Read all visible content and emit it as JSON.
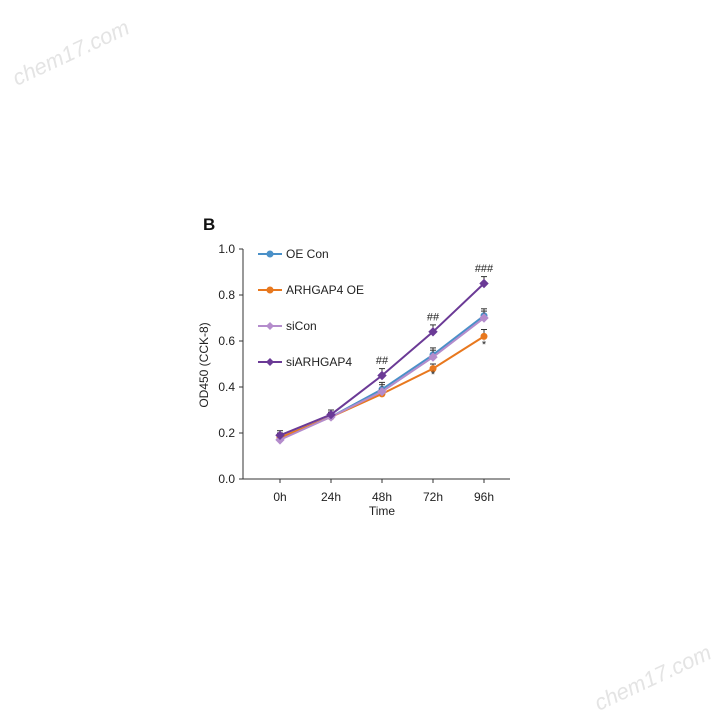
{
  "watermark": "chem17.com",
  "chart_data": {
    "type": "line",
    "panel_label": "B",
    "xlabel": "Time",
    "ylabel": "OD450 (CCK-8)",
    "categories": [
      "0h",
      "24h",
      "48h",
      "72h",
      "96h"
    ],
    "ylim": [
      0,
      1.0
    ],
    "yticks": [
      "0.0",
      "0.2",
      "0.4",
      "0.6",
      "0.8",
      "1.0"
    ],
    "legend_position": "top-left",
    "grid": false,
    "series": [
      {
        "name": "OE Con",
        "color": "#4a90c8",
        "marker": "circle",
        "values": [
          0.18,
          0.27,
          0.39,
          0.54,
          0.71
        ],
        "errors": [
          0.02,
          0.02,
          0.03,
          0.03,
          0.03
        ]
      },
      {
        "name": "ARHGAP4 OE",
        "color": "#e8781e",
        "marker": "circle",
        "values": [
          0.18,
          0.27,
          0.37,
          0.48,
          0.62
        ],
        "errors": [
          0.02,
          0.02,
          0.02,
          0.02,
          0.03
        ]
      },
      {
        "name": "siCon",
        "color": "#b48ccc",
        "marker": "diamond",
        "values": [
          0.17,
          0.27,
          0.38,
          0.53,
          0.7
        ],
        "errors": [
          0.02,
          0.02,
          0.03,
          0.03,
          0.03
        ]
      },
      {
        "name": "siARHGAP4",
        "color": "#6b3a96",
        "marker": "diamond",
        "values": [
          0.19,
          0.28,
          0.45,
          0.64,
          0.85
        ],
        "errors": [
          0.02,
          0.02,
          0.03,
          0.03,
          0.03
        ]
      }
    ],
    "annotations": [
      {
        "text": "##",
        "x": "48h",
        "y": 0.5
      },
      {
        "text": "##",
        "x": "72h",
        "y": 0.69
      },
      {
        "text": "###",
        "x": "96h",
        "y": 0.9
      },
      {
        "text": "*",
        "x": "72h",
        "y": 0.44
      },
      {
        "text": "*",
        "x": "96h",
        "y": 0.57
      }
    ]
  }
}
